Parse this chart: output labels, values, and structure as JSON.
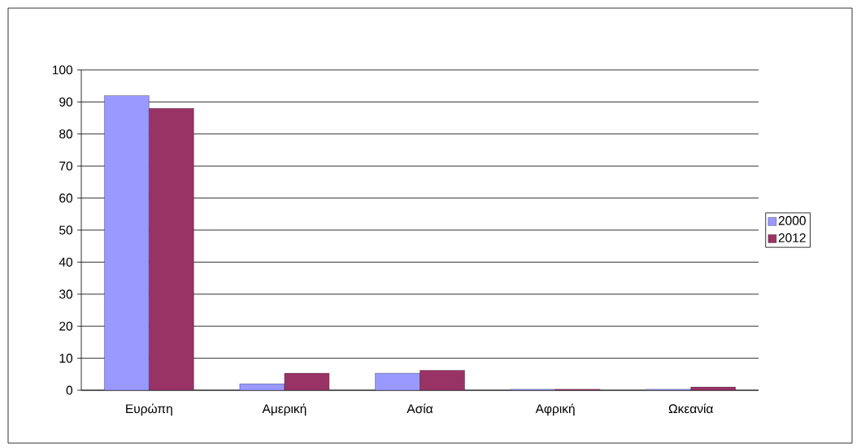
{
  "chart_data": {
    "type": "bar",
    "categories": [
      "Ευρώπη",
      "Αμερική",
      "Ασία",
      "Αφρική",
      "Ωκεανία"
    ],
    "series": [
      {
        "name": "2000",
        "color": "#9999ff",
        "values": [
          92,
          2,
          5.3,
          0.3,
          0.3
        ]
      },
      {
        "name": "2012",
        "color": "#993366",
        "values": [
          88,
          5.3,
          6.2,
          0.3,
          1.0
        ]
      }
    ],
    "ylim": [
      0,
      100
    ],
    "yticks": [
      0,
      10,
      20,
      30,
      40,
      50,
      60,
      70,
      80,
      90,
      100
    ],
    "grid": "y",
    "legend": "right"
  }
}
